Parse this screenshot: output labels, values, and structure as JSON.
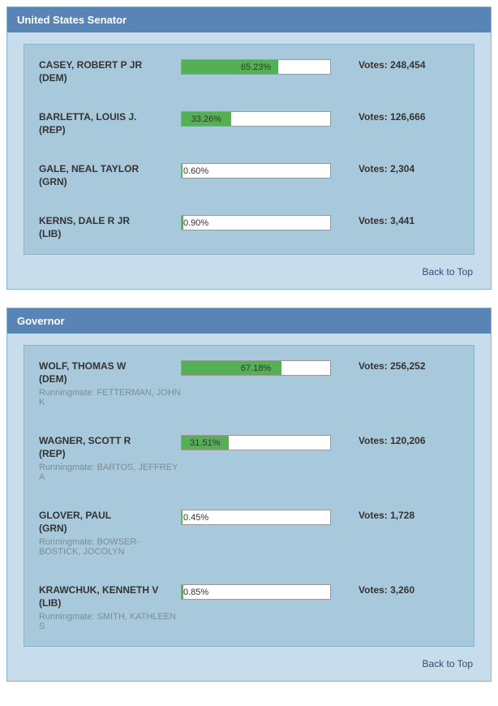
{
  "colors": {
    "panel_bg": "#c7ddeb",
    "header_bg": "#5885b6",
    "results_bg": "#a8c9db",
    "bar_track": "#ffffff",
    "bar_fill": "#55b055",
    "text": "#333333",
    "mate_text": "#7a8c95",
    "link": "#2a4d7a"
  },
  "ui": {
    "back_to_top": "Back to Top",
    "votes_prefix": "Votes: ",
    "runningmate_prefix": "Runningmate: "
  },
  "races": [
    {
      "title": "United States Senator",
      "candidates": [
        {
          "name": "CASEY, ROBERT P JR",
          "party": "(DEM)",
          "pct": 65.23,
          "pct_label": "65.23%",
          "votes": "248,454",
          "label_pos": "center"
        },
        {
          "name": "BARLETTA, LOUIS J.",
          "party": "(REP)",
          "pct": 33.26,
          "pct_label": "33.26%",
          "votes": "126,666",
          "label_pos": "center-fill"
        },
        {
          "name": "GALE, NEAL TAYLOR",
          "party": "(GRN)",
          "pct": 0.6,
          "pct_label": "0.60%",
          "votes": "2,304",
          "label_pos": "left"
        },
        {
          "name": "KERNS, DALE R JR",
          "party": "(LIB)",
          "pct": 0.9,
          "pct_label": "0.90%",
          "votes": "3,441",
          "label_pos": "left"
        }
      ]
    },
    {
      "title": "Governor",
      "candidates": [
        {
          "name": "WOLF, THOMAS W",
          "party": "(DEM)",
          "pct": 67.18,
          "pct_label": "67.18%",
          "votes": "256,252",
          "label_pos": "center",
          "runningmate": "FETTERMAN, JOHN K"
        },
        {
          "name": "WAGNER, SCOTT R",
          "party": "(REP)",
          "pct": 31.51,
          "pct_label": "31.51%",
          "votes": "120,206",
          "label_pos": "center-fill",
          "runningmate": "BARTOS, JEFFREY A"
        },
        {
          "name": "GLOVER, PAUL",
          "party": "(GRN)",
          "pct": 0.45,
          "pct_label": "0.45%",
          "votes": "1,728",
          "label_pos": "left",
          "runningmate": "BOWSER-BOSTICK, JOCOLYN"
        },
        {
          "name": "KRAWCHUK, KENNETH V",
          "party": "(LIB)",
          "pct": 0.85,
          "pct_label": "0.85%",
          "votes": "3,260",
          "label_pos": "left",
          "runningmate": "SMITH, KATHLEEN S"
        }
      ]
    }
  ]
}
